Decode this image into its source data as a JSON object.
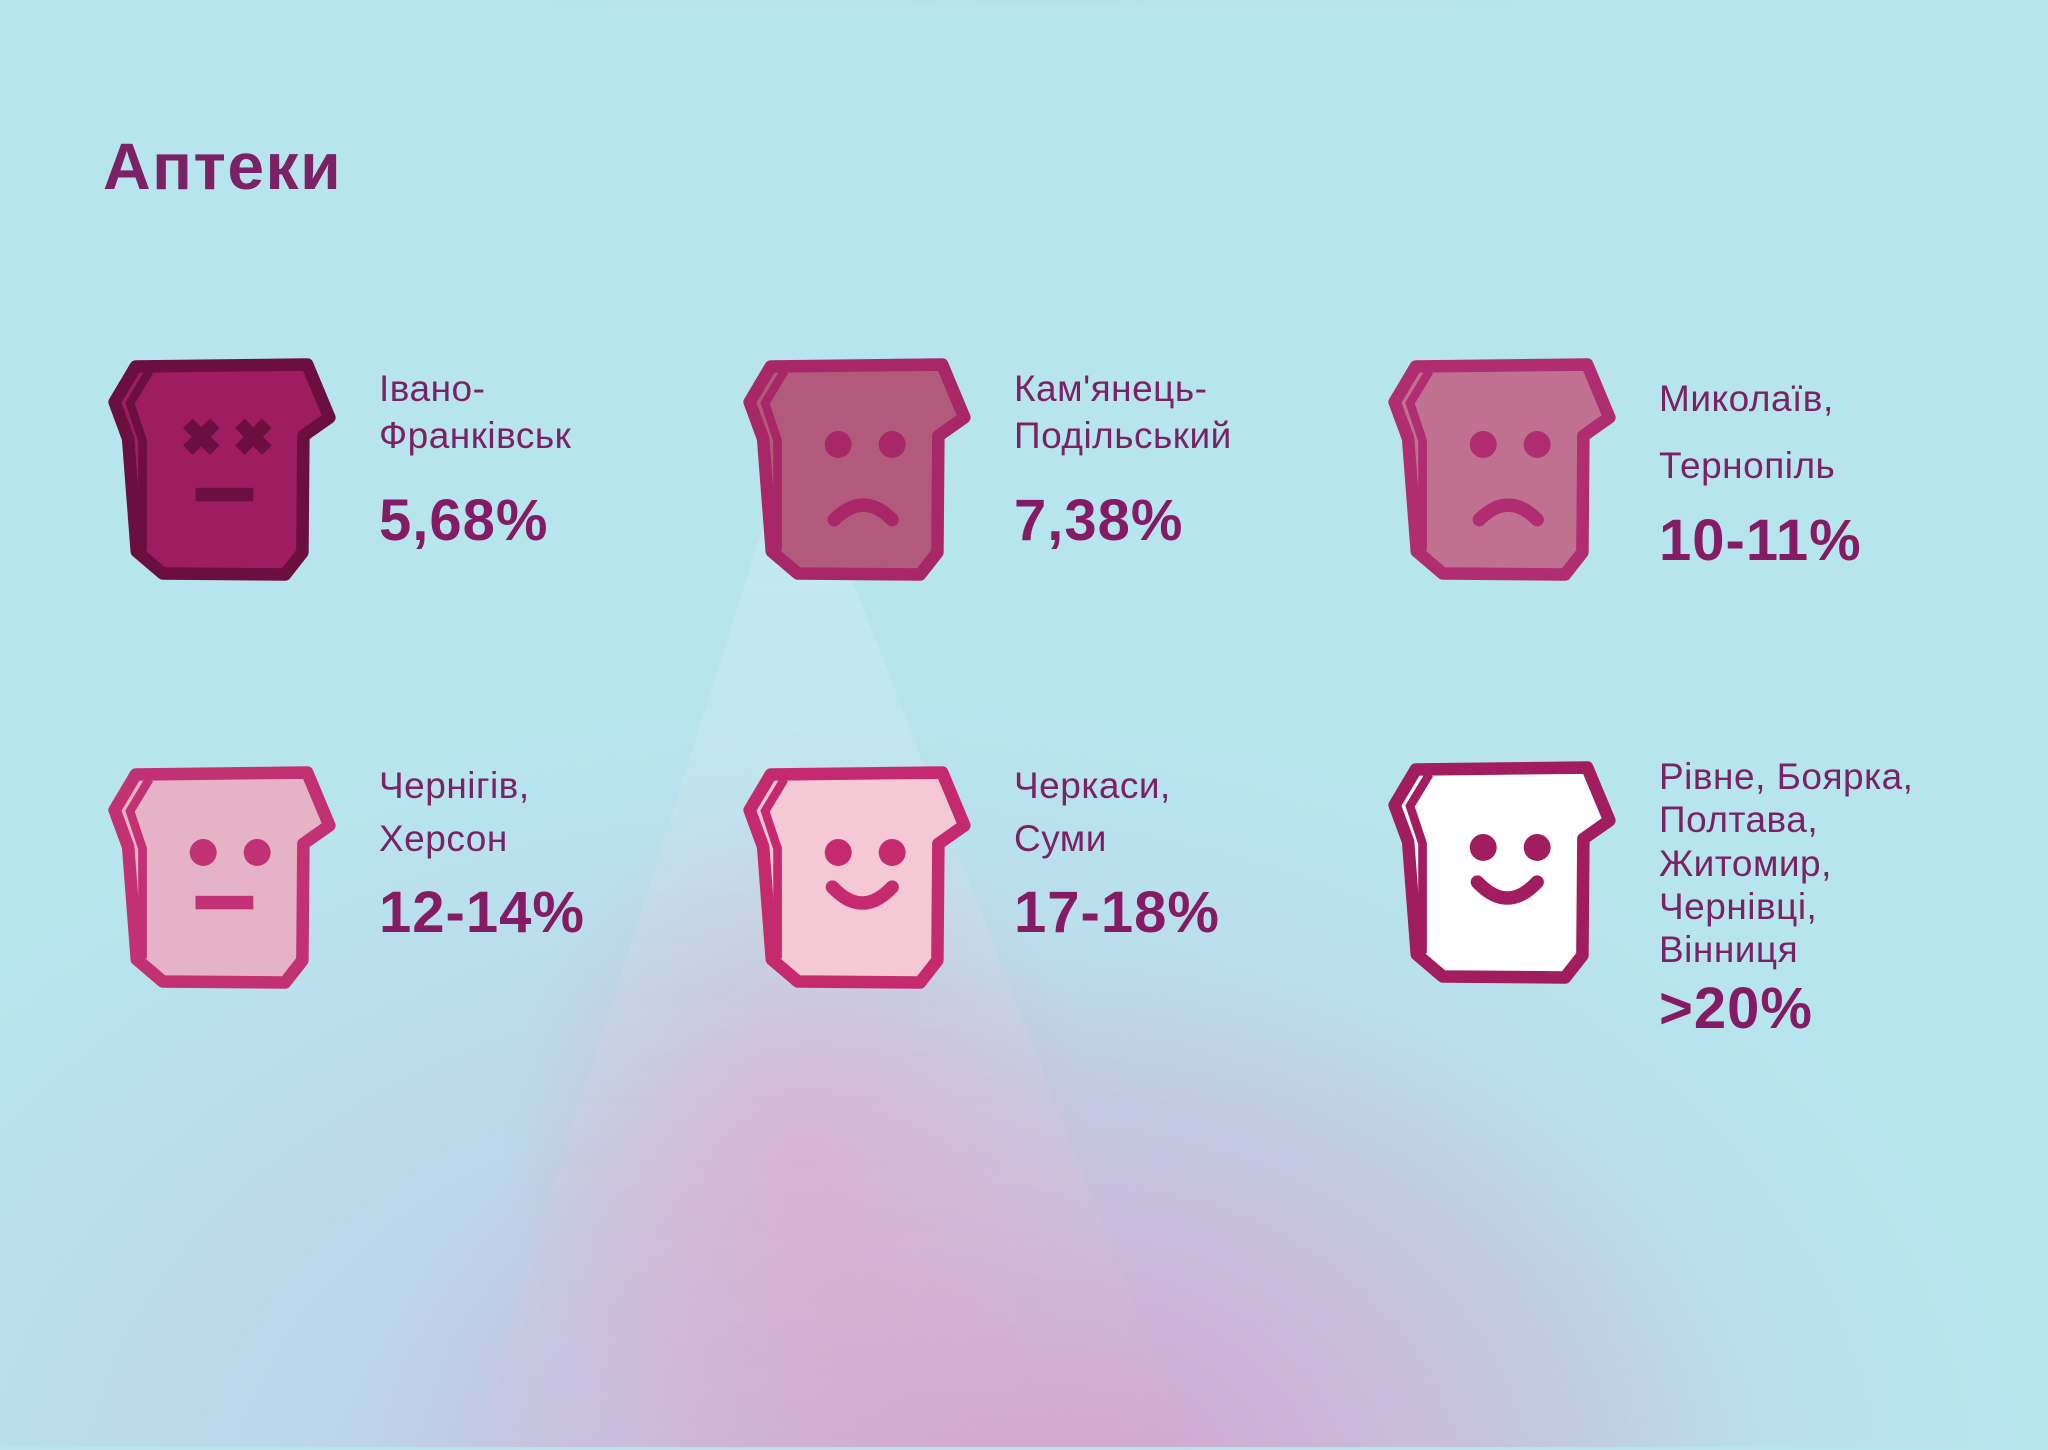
{
  "title": "Аптеки",
  "colors": {
    "background": "#b7e5ee",
    "glow": "#d5aace",
    "title": "#7c2166",
    "city": "#7b2264",
    "value": "#851b64"
  },
  "items": [
    {
      "mood": "dead-face-icon",
      "lines": [
        "Івано-",
        "Франківськ"
      ],
      "value": "5,68%",
      "outline": "#6b0e40",
      "fill": "#9e1d60"
    },
    {
      "mood": "sad-face-icon",
      "lines": [
        "Кам'янець-",
        "Подільський"
      ],
      "value": "7,38%",
      "outline": "#a82767",
      "fill": "#b25a7b"
    },
    {
      "mood": "sad-face-icon",
      "lines": [
        "Миколаїв,",
        "Тернопіль"
      ],
      "value": "10-11%",
      "outline": "#b02d72",
      "fill": "#c0718f"
    },
    {
      "mood": "neutral-face-icon",
      "lines": [
        "Чернігів,",
        "Херсон"
      ],
      "value": "12-14%",
      "outline": "#c23173",
      "fill": "#e6b2c6"
    },
    {
      "mood": "happy-face-icon",
      "lines": [
        "Черкаси,",
        "Суми"
      ],
      "value": "17-18%",
      "outline": "#c62a6e",
      "fill": "#f4c9d5"
    },
    {
      "mood": "happy-face-icon",
      "lines": [
        "Рівне, Боярка,",
        "Полтава,",
        "Житомир,",
        "Чернівці,",
        "Вінниця"
      ],
      "value": ">20%",
      "outline": "#a21d5f",
      "fill": "#ffffff"
    }
  ],
  "chart_data": {
    "type": "table",
    "title": "Аптеки",
    "categories": [
      "Івано-Франківськ",
      "Кам'янець-Подільський",
      "Миколаїв, Тернопіль",
      "Чернігів, Херсон",
      "Черкаси, Суми",
      "Рівне, Боярка, Полтава, Житомир, Чернівці, Вінниця"
    ],
    "values": [
      "5,68%",
      "7,38%",
      "10-11%",
      "12-14%",
      "17-18%",
      ">20%"
    ],
    "numeric_values_pct": [
      5.68,
      7.38,
      10.5,
      13,
      17.5,
      20
    ],
    "legend": "face mood encodes value: dead/x-eyes = lowest, sad = low, neutral = middle, happy = highest",
    "layout": "2 rows x 3 columns of pictogram faces with labels right of each icon"
  }
}
